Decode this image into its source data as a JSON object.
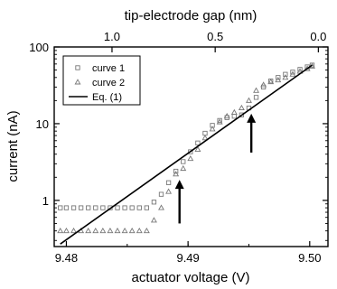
{
  "chart_data": {
    "type": "scatter",
    "xlabel": "actuator voltage (V)",
    "ylabel": "current (nA)",
    "x2label": "tip-electrode gap (nm)",
    "xlim": [
      9.479,
      9.5015
    ],
    "ylim": [
      0.25,
      100
    ],
    "yscale": "log",
    "x_ticks": [
      9.48,
      9.49,
      9.5
    ],
    "x_tick_labels": [
      "9.48",
      "9.49",
      "9.50"
    ],
    "y_ticks": [
      1,
      10,
      100
    ],
    "y_tick_labels": [
      "1",
      "10",
      "100"
    ],
    "x2_ticks": [
      9.48375,
      9.49223,
      9.50071
    ],
    "x2_tick_labels": [
      "1.0",
      "0.5",
      "0.0"
    ],
    "legend_position": "top-left",
    "grid": false,
    "arrows": [
      {
        "x": 9.4893,
        "y_from": 0.5,
        "y_to": 1.85
      },
      {
        "x": 9.4952,
        "y_from": 4.2,
        "y_to": 13.5
      }
    ],
    "series": [
      {
        "name": "curve 1",
        "marker": "square",
        "x": [
          9.4795,
          9.48,
          9.4806,
          9.4812,
          9.4818,
          9.4824,
          9.483,
          9.4836,
          9.4842,
          9.4848,
          9.4854,
          9.486,
          9.4866,
          9.4872,
          9.4878,
          9.4884,
          9.489,
          9.4896,
          9.4902,
          9.4908,
          9.4914,
          9.492,
          9.4926,
          9.4932,
          9.4938,
          9.4944,
          9.495,
          9.4956,
          9.4962,
          9.4968,
          9.4974,
          9.498,
          9.4986,
          9.4992,
          9.4998,
          9.5002
        ],
        "y": [
          0.8,
          0.8,
          0.8,
          0.8,
          0.8,
          0.8,
          0.8,
          0.8,
          0.8,
          0.8,
          0.8,
          0.8,
          0.8,
          0.95,
          1.2,
          1.7,
          2.4,
          3.2,
          4.3,
          5.6,
          7.5,
          9.5,
          11.0,
          12.0,
          12.5,
          13.0,
          16.0,
          22.0,
          30.0,
          36.0,
          40.0,
          44.0,
          47.0,
          51.0,
          55.0,
          58.0
        ]
      },
      {
        "name": "curve 2",
        "marker": "triangle",
        "x": [
          9.4795,
          9.48,
          9.4806,
          9.4812,
          9.4818,
          9.4824,
          9.483,
          9.4836,
          9.4842,
          9.4848,
          9.4854,
          9.486,
          9.4866,
          9.4872,
          9.4878,
          9.4884,
          9.489,
          9.4896,
          9.4902,
          9.4908,
          9.4914,
          9.492,
          9.4926,
          9.4932,
          9.4938,
          9.4944,
          9.495,
          9.4956,
          9.4962,
          9.4968,
          9.4974,
          9.498,
          9.4986,
          9.4992,
          9.4998,
          9.5002
        ],
        "y": [
          0.4,
          0.4,
          0.4,
          0.4,
          0.4,
          0.4,
          0.4,
          0.4,
          0.4,
          0.4,
          0.4,
          0.4,
          0.4,
          0.55,
          0.8,
          1.3,
          2.2,
          2.6,
          3.5,
          4.6,
          6.5,
          8.5,
          10.5,
          12.5,
          14.0,
          16.0,
          20.0,
          27.0,
          32.0,
          35.0,
          37.0,
          40.0,
          44.0,
          48.0,
          52.0,
          56.0
        ]
      },
      {
        "name": "Eq. (1)",
        "marker": "line",
        "x": [
          9.4795,
          9.5002
        ],
        "y": [
          0.27,
          58.0
        ]
      }
    ]
  }
}
